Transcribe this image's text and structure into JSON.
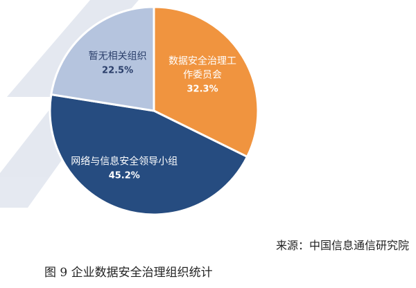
{
  "chart_data": {
    "type": "pie",
    "slices": [
      {
        "label": "数据安全治理工作委员会",
        "label_lines": [
          "数据安全治理工",
          "作委员会"
        ],
        "value": 32.3,
        "value_label": "32.3%",
        "color": "#f0943f"
      },
      {
        "label": "网络与信息安全领导小组",
        "label_lines": [
          "网络与信息安全领导小组"
        ],
        "value": 45.2,
        "value_label": "45.2%",
        "color": "#264c80"
      },
      {
        "label": "暂无相关组织",
        "label_lines": [
          "暂无相关组织"
        ],
        "value": 22.5,
        "value_label": "22.5%",
        "color": "#b5c4de"
      }
    ],
    "start_angle_deg": 0,
    "direction": "clockwise"
  },
  "source": "来源：中国信息通信研究院",
  "caption": "图 9  企业数据安全治理组织统计"
}
